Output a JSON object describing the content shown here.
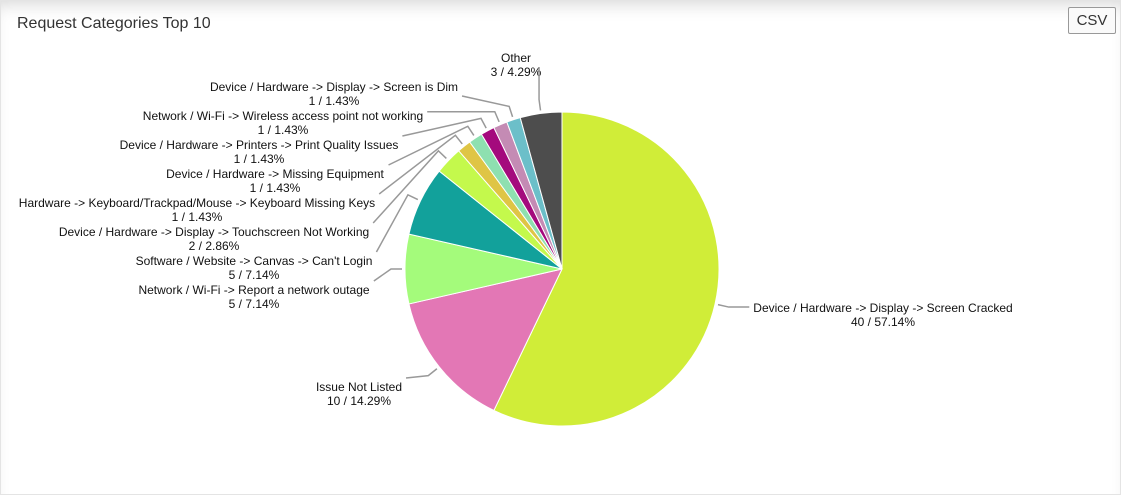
{
  "chart_data": {
    "type": "pie",
    "title": "Request Categories Top 10",
    "categories": [
      "Device / Hardware -> Display -> Screen Cracked",
      "Issue Not Listed",
      "Network / Wi-Fi -> Report a network outage",
      "Software / Website -> Canvas -> Can't Login",
      "Device / Hardware -> Display -> Touchscreen Not Working",
      "Hardware -> Keyboard/Trackpad/Mouse -> Keyboard Missing Keys",
      "Device / Hardware -> Missing Equipment",
      "Device / Hardware -> Printers -> Print Quality Issues",
      "Network / Wi-Fi -> Wireless access point not working",
      "Device / Hardware -> Display -> Screen is Dim",
      "Other"
    ],
    "values": [
      40,
      10,
      5,
      5,
      2,
      1,
      1,
      1,
      1,
      1,
      3
    ],
    "value_labels": [
      "40 / 57.14%",
      "10 / 14.29%",
      "5 / 7.14%",
      "5 / 7.14%",
      "2 / 2.86%",
      "1 / 1.43%",
      "1 / 1.43%",
      "1 / 1.43%",
      "1 / 1.43%",
      "1 / 1.43%",
      "3 / 4.29%"
    ],
    "colors": [
      "#d0ed38",
      "#e377b5",
      "#a4fb7b",
      "#12a19b",
      "#c4f94c",
      "#dfc545",
      "#8ee0b0",
      "#a40a7d",
      "#c48bb4",
      "#6cbfc9",
      "#4d4d4d"
    ]
  },
  "toolbar": {
    "button": "CSV"
  }
}
